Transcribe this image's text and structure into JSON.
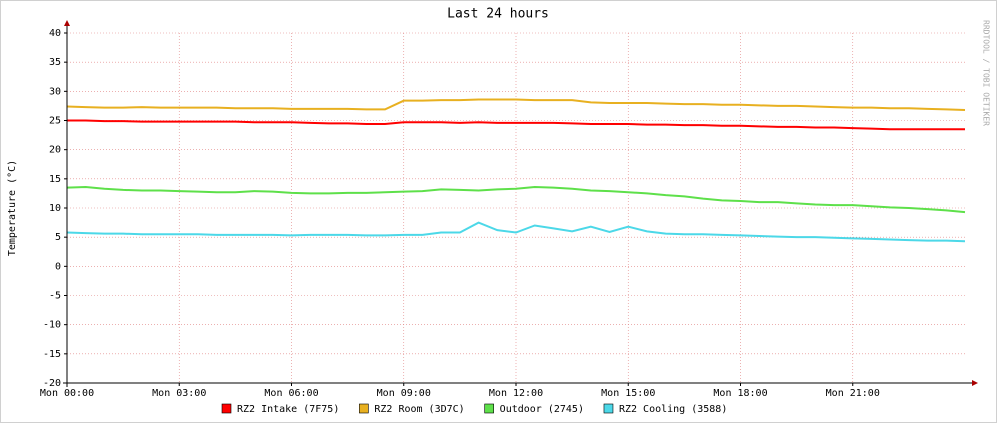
{
  "chart_data": {
    "type": "line",
    "title": "Last 24 hours",
    "y_label": "Temperature (°C)",
    "watermark": "RRDTOOL / TOBI OETIKER",
    "x": [
      0,
      0.5,
      1,
      1.5,
      2,
      2.5,
      3,
      3.5,
      4,
      4.5,
      5,
      5.5,
      6,
      6.5,
      7,
      7.5,
      8,
      8.5,
      9,
      9.5,
      10,
      10.5,
      11,
      11.5,
      12,
      12.5,
      13,
      13.5,
      14,
      14.5,
      15,
      15.5,
      16,
      16.5,
      17,
      17.5,
      18,
      18.5,
      19,
      19.5,
      20,
      20.5,
      21,
      21.5,
      22,
      22.5,
      23,
      23.5,
      24
    ],
    "xlim": [
      0,
      24
    ],
    "xticks": [
      {
        "value": 0,
        "label": "Mon 00:00"
      },
      {
        "value": 3,
        "label": "Mon 03:00"
      },
      {
        "value": 6,
        "label": "Mon 06:00"
      },
      {
        "value": 9,
        "label": "Mon 09:00"
      },
      {
        "value": 12,
        "label": "Mon 12:00"
      },
      {
        "value": 15,
        "label": "Mon 15:00"
      },
      {
        "value": 18,
        "label": "Mon 18:00"
      },
      {
        "value": 21,
        "label": "Mon 21:00"
      }
    ],
    "ylim": [
      -20,
      40
    ],
    "yticks": [
      -20,
      -15,
      -10,
      -5,
      0,
      5,
      10,
      15,
      20,
      25,
      30,
      35,
      40
    ],
    "grid": true,
    "legend": "bottom",
    "series": [
      {
        "name": "RZ2 Intake (7F75)",
        "color": "#ff0000",
        "values": [
          25.0,
          25.0,
          24.9,
          24.9,
          24.8,
          24.8,
          24.8,
          24.8,
          24.8,
          24.8,
          24.7,
          24.7,
          24.7,
          24.6,
          24.5,
          24.5,
          24.4,
          24.4,
          24.7,
          24.7,
          24.7,
          24.6,
          24.7,
          24.6,
          24.6,
          24.6,
          24.6,
          24.5,
          24.4,
          24.4,
          24.4,
          24.3,
          24.3,
          24.2,
          24.2,
          24.1,
          24.1,
          24.0,
          23.9,
          23.9,
          23.8,
          23.8,
          23.7,
          23.6,
          23.5,
          23.5,
          23.5,
          23.5,
          23.5
        ]
      },
      {
        "name": "RZ2 Room (3D7C)",
        "color": "#e8b020",
        "values": [
          27.4,
          27.3,
          27.2,
          27.2,
          27.3,
          27.2,
          27.2,
          27.2,
          27.2,
          27.1,
          27.1,
          27.1,
          27.0,
          27.0,
          27.0,
          27.0,
          26.9,
          26.9,
          28.4,
          28.4,
          28.5,
          28.5,
          28.6,
          28.6,
          28.6,
          28.5,
          28.5,
          28.5,
          28.1,
          28.0,
          28.0,
          28.0,
          27.9,
          27.8,
          27.8,
          27.7,
          27.7,
          27.6,
          27.5,
          27.5,
          27.4,
          27.3,
          27.2,
          27.2,
          27.1,
          27.1,
          27.0,
          26.9,
          26.8
        ]
      },
      {
        "name": "Outdoor (2745)",
        "color": "#5ee04a",
        "values": [
          13.5,
          13.6,
          13.3,
          13.1,
          13.0,
          13.0,
          12.9,
          12.8,
          12.7,
          12.7,
          12.9,
          12.8,
          12.6,
          12.5,
          12.5,
          12.6,
          12.6,
          12.7,
          12.8,
          12.9,
          13.2,
          13.1,
          13.0,
          13.2,
          13.3,
          13.6,
          13.5,
          13.3,
          13.0,
          12.9,
          12.7,
          12.5,
          12.2,
          12.0,
          11.6,
          11.3,
          11.2,
          11.0,
          11.0,
          10.8,
          10.6,
          10.5,
          10.5,
          10.3,
          10.1,
          10.0,
          9.8,
          9.6,
          9.3
        ]
      },
      {
        "name": "RZ2 Cooling (3588)",
        "color": "#4cd8e8",
        "values": [
          5.8,
          5.7,
          5.6,
          5.6,
          5.5,
          5.5,
          5.5,
          5.5,
          5.4,
          5.4,
          5.4,
          5.4,
          5.3,
          5.4,
          5.4,
          5.4,
          5.3,
          5.3,
          5.4,
          5.4,
          5.8,
          5.8,
          7.5,
          6.2,
          5.8,
          7.0,
          6.5,
          6.0,
          6.8,
          5.9,
          6.8,
          6.0,
          5.6,
          5.5,
          5.5,
          5.4,
          5.3,
          5.2,
          5.1,
          5.0,
          5.0,
          4.9,
          4.8,
          4.7,
          4.6,
          4.5,
          4.4,
          4.4,
          4.3
        ]
      }
    ]
  }
}
